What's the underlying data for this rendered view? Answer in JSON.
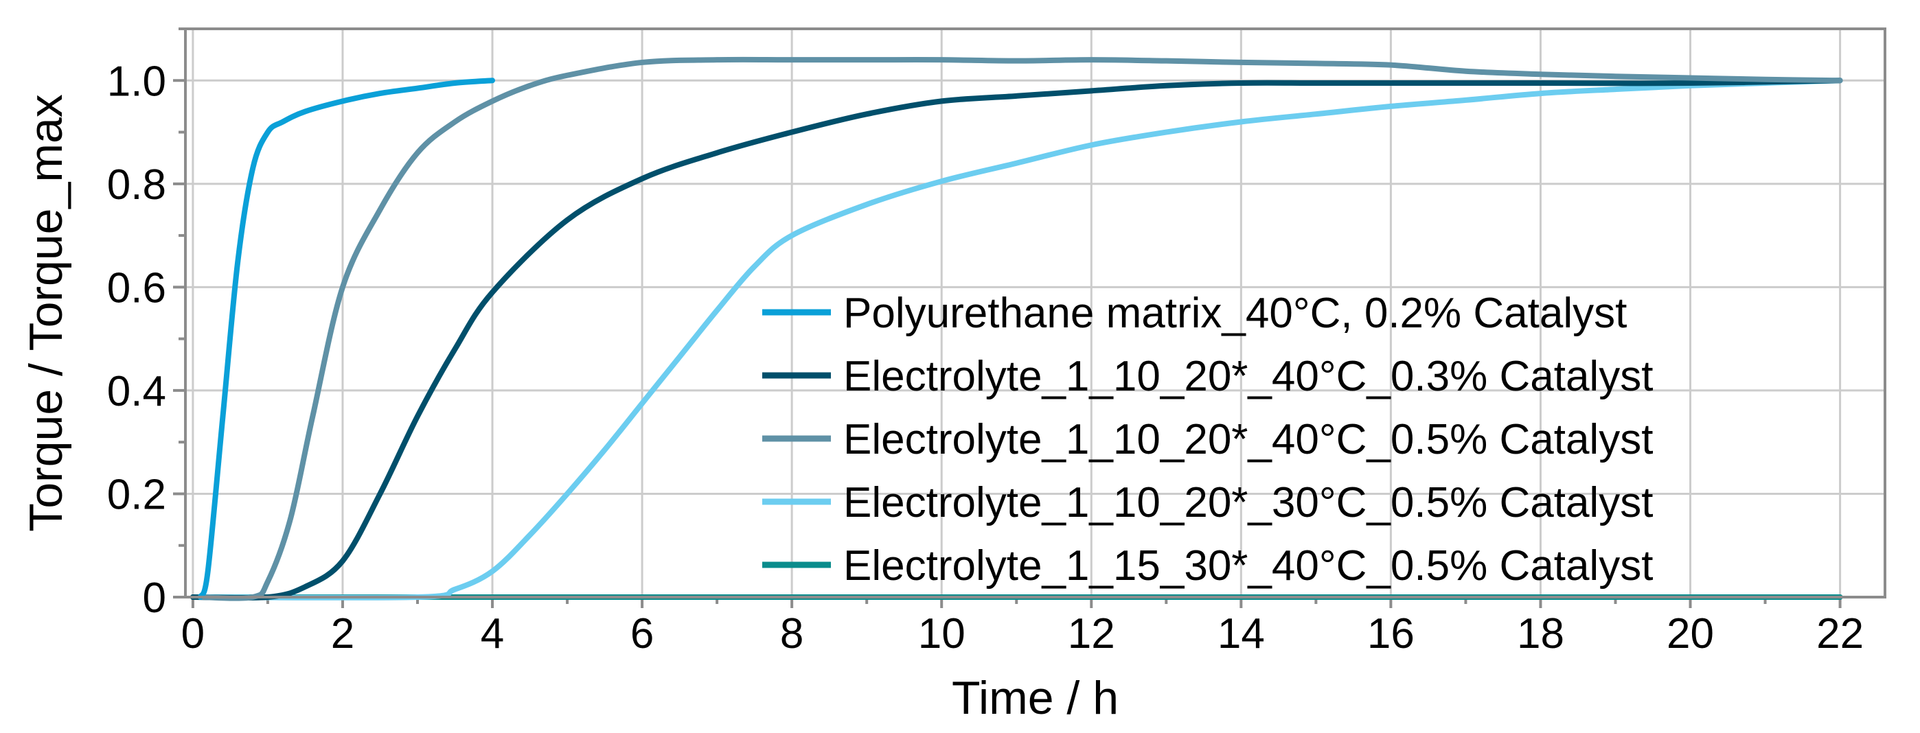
{
  "chart_data": {
    "type": "line",
    "xlabel": "Time / h",
    "ylabel": "Torque / Torque_max",
    "xlim": [
      -0.1,
      22.6
    ],
    "ylim": [
      0,
      1.1
    ],
    "xticks": [
      0,
      2,
      4,
      6,
      8,
      10,
      12,
      14,
      16,
      18,
      20,
      22
    ],
    "xtick_labels": [
      "0",
      "2",
      "4",
      "6",
      "8",
      "10",
      "12",
      "14",
      "16",
      "18",
      "20",
      "22"
    ],
    "yticks": [
      0,
      0.2,
      0.4,
      0.6,
      0.8,
      1.0
    ],
    "ytick_labels": [
      "0",
      "0.2",
      "0.4",
      "0.6",
      "0.8",
      "1.0"
    ],
    "grid": true,
    "legend_position": "lower-right",
    "series": [
      {
        "name": "Polyurethane matrix_40°C, 0.2% Catalyst",
        "color": "#0aa0d8",
        "x": [
          0.1,
          0.2,
          0.4,
          0.6,
          0.8,
          1.0,
          1.2,
          1.5,
          2.0,
          2.5,
          3.0,
          3.5,
          4.0
        ],
        "y": [
          0.0,
          0.05,
          0.35,
          0.65,
          0.83,
          0.9,
          0.92,
          0.94,
          0.96,
          0.975,
          0.985,
          0.995,
          1.0
        ]
      },
      {
        "name": "Electrolyte_1_10_20*_40°C_0.3% Catalyst",
        "color": "#004f6b",
        "x": [
          0,
          1.0,
          1.5,
          2.0,
          2.5,
          3.0,
          3.5,
          4.0,
          5.0,
          6.0,
          7.0,
          8.0,
          9.0,
          10.0,
          11.0,
          12.0,
          13.0,
          14.0,
          15.0,
          16.0,
          18.0,
          20.0,
          22.0
        ],
        "y": [
          0,
          0.0,
          0.02,
          0.07,
          0.2,
          0.35,
          0.48,
          0.59,
          0.73,
          0.81,
          0.86,
          0.9,
          0.935,
          0.96,
          0.97,
          0.98,
          0.99,
          0.995,
          0.995,
          0.995,
          0.995,
          0.995,
          1.0
        ]
      },
      {
        "name": "Electrolyte_1_10_20*_40°C_0.5% Catalyst",
        "color": "#5f91a6",
        "x": [
          0.1,
          0.8,
          1.0,
          1.3,
          1.6,
          2.0,
          2.5,
          3.0,
          3.5,
          4.0,
          4.5,
          5.0,
          6.0,
          7.0,
          8.0,
          9.0,
          10.0,
          11.0,
          12.0,
          13.0,
          14.0,
          15.0,
          16.0,
          17.0,
          18.0,
          19.0,
          20.0,
          21.0,
          22.0
        ],
        "y": [
          0.0,
          0.0,
          0.03,
          0.15,
          0.35,
          0.6,
          0.75,
          0.86,
          0.92,
          0.96,
          0.99,
          1.01,
          1.035,
          1.04,
          1.04,
          1.04,
          1.04,
          1.038,
          1.04,
          1.038,
          1.035,
          1.033,
          1.03,
          1.018,
          1.012,
          1.008,
          1.005,
          1.002,
          1.0
        ]
      },
      {
        "name": "Electrolyte_1_10_20*_30°C_0.5% Catalyst",
        "color": "#6ccdf0",
        "x": [
          0,
          3.0,
          3.5,
          4.0,
          4.5,
          5.0,
          5.5,
          6.0,
          6.5,
          7.0,
          7.5,
          8.0,
          9.0,
          10.0,
          11.0,
          12.0,
          13.0,
          14.0,
          15.0,
          16.0,
          17.0,
          18.0,
          19.0,
          20.0,
          21.0,
          22.0
        ],
        "y": [
          0,
          0.0,
          0.015,
          0.05,
          0.12,
          0.2,
          0.285,
          0.375,
          0.465,
          0.555,
          0.64,
          0.7,
          0.76,
          0.805,
          0.84,
          0.875,
          0.9,
          0.92,
          0.935,
          0.95,
          0.962,
          0.975,
          0.983,
          0.99,
          0.995,
          1.0
        ]
      },
      {
        "name": "Electrolyte_1_15_30*_40°C_0.5% Catalyst",
        "color": "#0a8c8c",
        "x": [
          0,
          22
        ],
        "y": [
          0,
          0
        ]
      }
    ]
  }
}
